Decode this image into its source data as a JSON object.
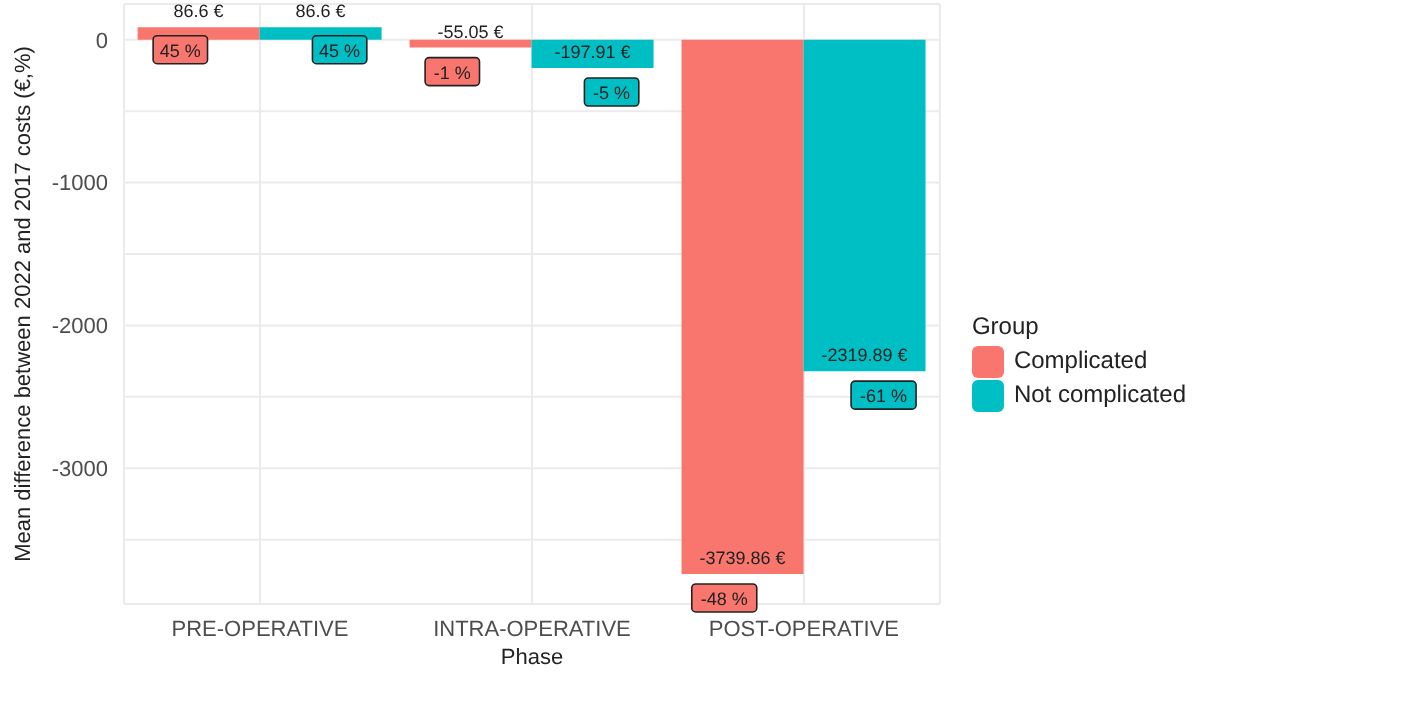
{
  "chart_data": {
    "type": "bar",
    "xlabel": "Phase",
    "ylabel": "Mean difference between 2022 and 2017 costs (€,%)",
    "legend_title": "Group",
    "legend": "right",
    "grid": true,
    "categories": [
      "PRE-OPERATIVE",
      "INTRA-OPERATIVE",
      "POST-OPERATIVE"
    ],
    "series": [
      {
        "name": "Complicated",
        "color": "#f8766d",
        "values": [
          86.6,
          -55.05,
          -3739.86
        ],
        "value_labels": [
          "86.6 €",
          "-55.05 €",
          "-3739.86 €"
        ]
      },
      {
        "name": "Not complicated",
        "color": "#00bfc4",
        "values": [
          86.6,
          -197.91,
          -2319.89
        ],
        "value_labels": [
          "86.6 €",
          "-197.91 €",
          "-2319.89 €"
        ]
      }
    ],
    "ylim": [
      -3950,
      250
    ],
    "yticks": [
      0,
      {
        "value": -500,
        "label": null
      },
      -1000,
      {
        "value": -1500,
        "label": null
      },
      -2000,
      {
        "value": -2500,
        "label": null
      },
      -3000,
      {
        "value": -3500,
        "label": null
      }
    ],
    "annotations": [
      "45 %",
      "-1 %",
      "-48 %",
      "45 %",
      "-5 %",
      "-61 %"
    ]
  }
}
